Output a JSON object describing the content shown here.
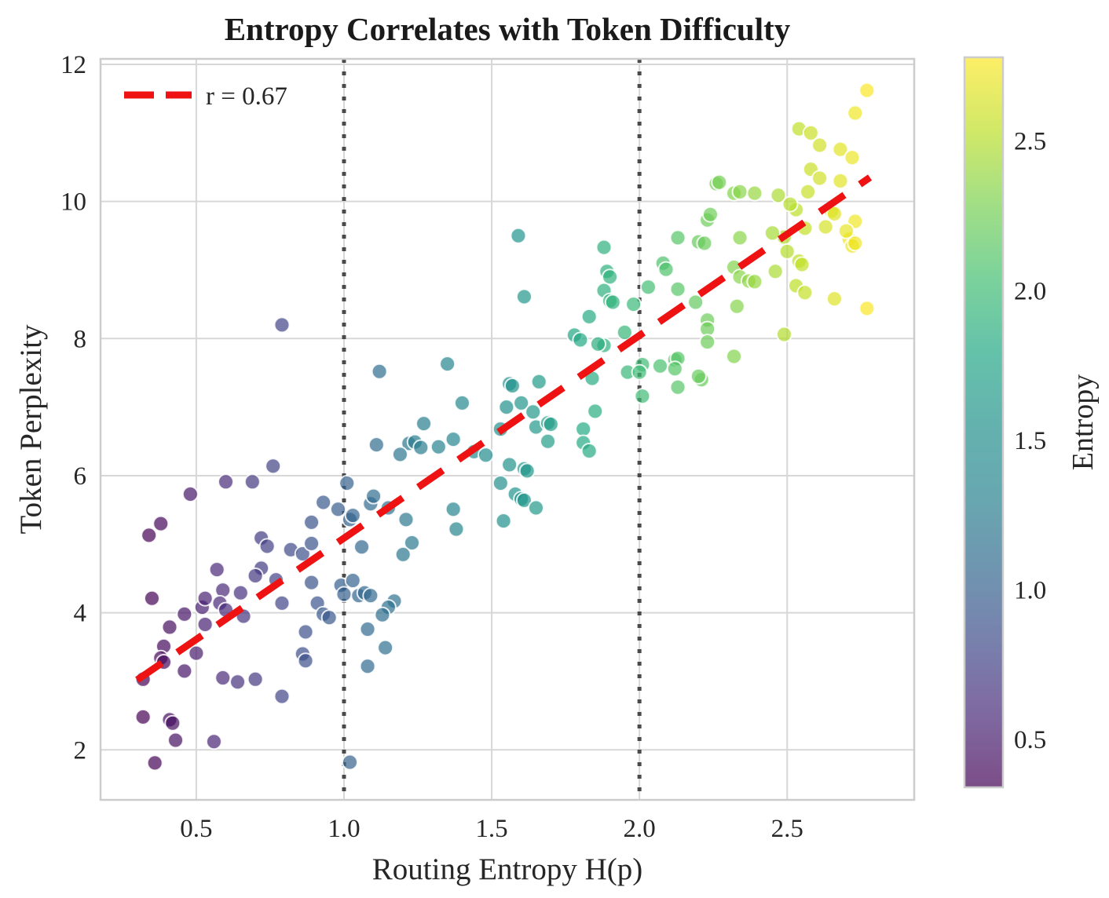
{
  "title": "Entropy Correlates with Token Difficulty",
  "legend": {
    "label": "r = 0.67"
  },
  "axes": {
    "xlabel": "Routing Entropy H(p)",
    "ylabel": "Token Perplexity",
    "xticks": [
      0.5,
      1.0,
      1.5,
      2.0,
      2.5
    ],
    "yticks": [
      2,
      4,
      6,
      8,
      10,
      12
    ],
    "xlim": [
      0.176,
      2.93
    ],
    "ylim": [
      1.27,
      12.08
    ],
    "grid": true
  },
  "colorbar": {
    "label": "Entropy",
    "ticks": [
      0.5,
      1.0,
      1.5,
      2.0,
      2.5
    ],
    "vmin": 0.34,
    "vmax": 2.78,
    "colormap": "viridis"
  },
  "colors": {
    "trend": "#ee1212",
    "vline": "#4a4a4a",
    "grid": "#d7d7d7",
    "spine": "#cccccc",
    "text": "#262626"
  },
  "chart_data": {
    "type": "scatter",
    "title": "Entropy Correlates with Token Difficulty",
    "xlabel": "Routing Entropy H(p)",
    "ylabel": "Token Perplexity",
    "legend_entries": [
      "r = 0.67"
    ],
    "legend_position": "upper left",
    "color_by": "routing entropy (x value)",
    "colormap": "viridis",
    "point_alpha": 0.7,
    "vlines_dotted_x": [
      1.0,
      2.0
    ],
    "trendline": {
      "style": "dashed",
      "color": "red",
      "x": [
        0.3,
        2.78
      ],
      "y": [
        3.02,
        10.35
      ],
      "r": 0.67
    },
    "xlim": [
      0.176,
      2.93
    ],
    "ylim": [
      1.27,
      12.08
    ],
    "points": [
      [
        0.34,
        5.13
      ],
      [
        0.38,
        5.3
      ],
      [
        0.57,
        4.63
      ],
      [
        0.35,
        4.21
      ],
      [
        0.52,
        4.08
      ],
      [
        0.46,
        3.98
      ],
      [
        0.53,
        4.21
      ],
      [
        0.59,
        4.33
      ],
      [
        0.65,
        4.29
      ],
      [
        0.58,
        4.14
      ],
      [
        0.6,
        4.04
      ],
      [
        0.66,
        3.95
      ],
      [
        0.41,
        3.79
      ],
      [
        0.53,
        3.83
      ],
      [
        0.39,
        3.51
      ],
      [
        0.38,
        3.34
      ],
      [
        0.39,
        3.28
      ],
      [
        0.46,
        3.15
      ],
      [
        0.5,
        3.41
      ],
      [
        0.32,
        3.03
      ],
      [
        0.59,
        3.05
      ],
      [
        0.64,
        2.99
      ],
      [
        0.7,
        3.03
      ],
      [
        0.79,
        2.78
      ],
      [
        0.32,
        2.48
      ],
      [
        0.41,
        2.44
      ],
      [
        0.42,
        2.39
      ],
      [
        0.43,
        2.14
      ],
      [
        0.56,
        2.12
      ],
      [
        0.36,
        1.81
      ],
      [
        1.02,
        1.82
      ],
      [
        0.72,
        5.09
      ],
      [
        0.74,
        4.97
      ],
      [
        0.82,
        4.92
      ],
      [
        0.86,
        4.86
      ],
      [
        0.72,
        4.65
      ],
      [
        0.7,
        4.54
      ],
      [
        0.77,
        4.48
      ],
      [
        0.79,
        4.14
      ],
      [
        0.89,
        5.01
      ],
      [
        0.89,
        4.44
      ],
      [
        0.91,
        4.14
      ],
      [
        0.93,
        3.98
      ],
      [
        0.95,
        3.93
      ],
      [
        0.87,
        3.72
      ],
      [
        0.86,
        3.4
      ],
      [
        0.87,
        3.3
      ],
      [
        0.99,
        4.4
      ],
      [
        1.0,
        4.27
      ],
      [
        1.05,
        4.25
      ],
      [
        1.07,
        4.29
      ],
      [
        1.06,
        4.96
      ],
      [
        0.89,
        5.32
      ],
      [
        1.02,
        5.36
      ],
      [
        1.08,
        3.76
      ],
      [
        1.08,
        3.22
      ],
      [
        0.79,
        8.2
      ],
      [
        0.76,
        6.14
      ],
      [
        0.6,
        5.91
      ],
      [
        0.69,
        5.91
      ],
      [
        0.48,
        5.73
      ],
      [
        1.01,
        5.89
      ],
      [
        1.12,
        7.52
      ],
      [
        1.11,
        6.45
      ],
      [
        0.93,
        5.61
      ],
      [
        0.98,
        5.51
      ],
      [
        1.09,
        5.59
      ],
      [
        1.1,
        5.7
      ],
      [
        1.4,
        7.06
      ],
      [
        1.27,
        6.76
      ],
      [
        1.22,
        6.47
      ],
      [
        1.24,
        6.49
      ],
      [
        1.19,
        6.31
      ],
      [
        1.26,
        6.41
      ],
      [
        1.32,
        6.42
      ],
      [
        1.37,
        6.53
      ],
      [
        1.44,
        6.35
      ],
      [
        1.48,
        6.3
      ],
      [
        1.15,
        5.53
      ],
      [
        1.03,
        5.42
      ],
      [
        1.21,
        5.36
      ],
      [
        1.37,
        5.51
      ],
      [
        1.38,
        5.22
      ],
      [
        1.54,
        5.34
      ],
      [
        1.23,
        5.02
      ],
      [
        1.2,
        4.85
      ],
      [
        1.56,
        7.34
      ],
      [
        1.57,
        7.31
      ],
      [
        1.55,
        7.0
      ],
      [
        1.6,
        7.06
      ],
      [
        1.64,
        6.93
      ],
      [
        1.66,
        7.37
      ],
      [
        1.53,
        6.68
      ],
      [
        1.65,
        6.71
      ],
      [
        1.69,
        6.77
      ],
      [
        1.7,
        6.75
      ],
      [
        1.69,
        6.5
      ],
      [
        1.81,
        6.68
      ],
      [
        1.81,
        6.48
      ],
      [
        1.83,
        6.36
      ],
      [
        1.85,
        6.94
      ],
      [
        1.56,
        6.16
      ],
      [
        1.61,
        6.1
      ],
      [
        1.62,
        6.07
      ],
      [
        1.53,
        5.89
      ],
      [
        1.58,
        5.73
      ],
      [
        1.6,
        5.66
      ],
      [
        1.61,
        5.64
      ],
      [
        1.65,
        5.53
      ],
      [
        1.03,
        4.47
      ],
      [
        1.09,
        4.25
      ],
      [
        1.17,
        4.17
      ],
      [
        1.15,
        4.08
      ],
      [
        1.13,
        3.97
      ],
      [
        1.14,
        3.49
      ],
      [
        1.35,
        7.63
      ],
      [
        1.88,
        9.33
      ],
      [
        1.89,
        8.98
      ],
      [
        1.9,
        8.9
      ],
      [
        1.88,
        8.7
      ],
      [
        1.9,
        8.55
      ],
      [
        1.91,
        8.53
      ],
      [
        1.98,
        8.5
      ],
      [
        1.88,
        7.9
      ],
      [
        1.86,
        7.92
      ],
      [
        1.95,
        8.09
      ],
      [
        1.59,
        9.5
      ],
      [
        1.61,
        8.61
      ],
      [
        1.83,
        8.32
      ],
      [
        1.78,
        8.05
      ],
      [
        1.8,
        7.98
      ],
      [
        1.84,
        7.42
      ],
      [
        2.03,
        8.75
      ],
      [
        2.08,
        9.1
      ],
      [
        2.09,
        9.01
      ],
      [
        2.13,
        9.47
      ],
      [
        2.2,
        9.41
      ],
      [
        2.22,
        9.39
      ],
      [
        2.13,
        8.72
      ],
      [
        2.19,
        8.53
      ],
      [
        2.23,
        8.27
      ],
      [
        2.23,
        8.14
      ],
      [
        2.23,
        7.95
      ],
      [
        2.34,
        9.47
      ],
      [
        2.32,
        9.04
      ],
      [
        2.34,
        8.9
      ],
      [
        2.33,
        8.47
      ],
      [
        2.37,
        8.84
      ],
      [
        2.39,
        8.83
      ],
      [
        2.46,
        8.98
      ],
      [
        2.49,
        9.48
      ],
      [
        2.5,
        9.27
      ],
      [
        2.49,
        8.06
      ],
      [
        2.32,
        7.74
      ],
      [
        2.12,
        7.69
      ],
      [
        2.13,
        7.71
      ],
      [
        2.12,
        7.56
      ],
      [
        2.07,
        7.6
      ],
      [
        2.01,
        7.62
      ],
      [
        1.96,
        7.51
      ],
      [
        2.01,
        7.16
      ],
      [
        2.13,
        7.29
      ],
      [
        2.21,
        7.4
      ],
      [
        2.23,
        9.73
      ],
      [
        2.0,
        7.51
      ],
      [
        2.2,
        7.45
      ],
      [
        2.24,
        9.81
      ],
      [
        2.26,
        10.26
      ],
      [
        2.27,
        10.28
      ],
      [
        2.32,
        10.12
      ],
      [
        2.34,
        10.14
      ],
      [
        2.39,
        10.12
      ],
      [
        2.47,
        10.09
      ],
      [
        2.45,
        9.54
      ],
      [
        2.54,
        9.13
      ],
      [
        2.55,
        9.08
      ],
      [
        2.53,
        8.77
      ],
      [
        2.56,
        8.67
      ],
      [
        2.66,
        8.58
      ],
      [
        2.77,
        8.44
      ],
      [
        2.71,
        9.45
      ],
      [
        2.77,
        11.62
      ],
      [
        2.73,
        11.29
      ],
      [
        2.54,
        11.06
      ],
      [
        2.58,
        11.0
      ],
      [
        2.61,
        10.82
      ],
      [
        2.68,
        10.76
      ],
      [
        2.72,
        10.64
      ],
      [
        2.58,
        10.47
      ],
      [
        2.61,
        10.34
      ],
      [
        2.68,
        10.3
      ],
      [
        2.57,
        10.14
      ],
      [
        2.53,
        9.88
      ],
      [
        2.65,
        9.86
      ],
      [
        2.66,
        9.82
      ],
      [
        2.73,
        9.71
      ],
      [
        2.63,
        9.63
      ],
      [
        2.7,
        9.57
      ],
      [
        2.72,
        9.35
      ],
      [
        2.73,
        9.39
      ],
      [
        2.56,
        9.61
      ],
      [
        2.51,
        9.96
      ]
    ]
  }
}
